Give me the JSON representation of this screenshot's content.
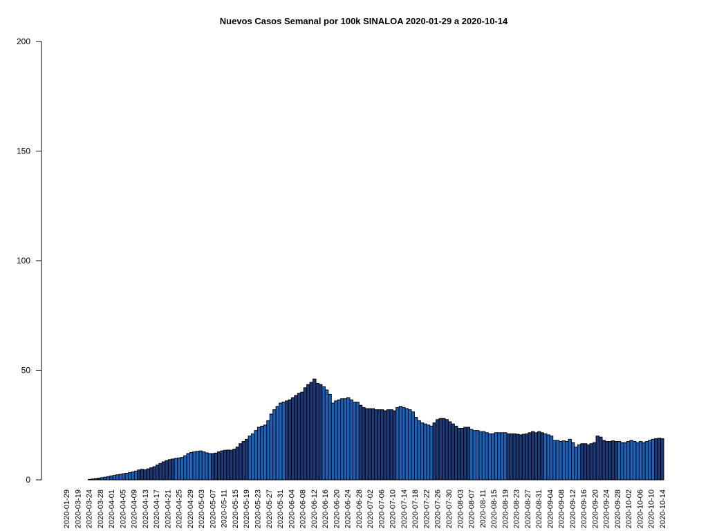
{
  "chart_data": {
    "type": "bar",
    "title": "Nuevos Casos Semanal por 100k SINALOA 2020-01-29 a 2020-10-14",
    "xlabel": "",
    "ylabel": "",
    "ylim": [
      0,
      200
    ],
    "yticks": [
      0,
      50,
      100,
      150,
      200
    ],
    "grid": false,
    "legend": "none",
    "colors": [
      "#1a3a7a",
      "#1565c0"
    ],
    "border_color": "#000000",
    "x_tick_labels": [
      "2020-01-29",
      "2020-03-19",
      "2020-03-24",
      "2020-03-28",
      "2020-04-01",
      "2020-04-05",
      "2020-04-09",
      "2020-04-13",
      "2020-04-17",
      "2020-04-21",
      "2020-04-25",
      "2020-04-29",
      "2020-05-03",
      "2020-05-07",
      "2020-05-11",
      "2020-05-15",
      "2020-05-19",
      "2020-05-23",
      "2020-05-27",
      "2020-05-31",
      "2020-06-04",
      "2020-06-08",
      "2020-06-12",
      "2020-06-16",
      "2020-06-20",
      "2020-06-24",
      "2020-06-28",
      "2020-07-02",
      "2020-07-06",
      "2020-07-10",
      "2020-07-14",
      "2020-07-18",
      "2020-07-22",
      "2020-07-26",
      "2020-07-30",
      "2020-08-03",
      "2020-08-07",
      "2020-08-11",
      "2020-08-15",
      "2020-08-19",
      "2020-08-23",
      "2020-08-27",
      "2020-08-31",
      "2020-09-04",
      "2020-09-08",
      "2020-09-12",
      "2020-09-16",
      "2020-09-20",
      "2020-09-24",
      "2020-09-28",
      "2020-10-02",
      "2020-10-06",
      "2020-10-10",
      "2020-10-14"
    ],
    "values": [
      0,
      0,
      0,
      0,
      0,
      0,
      0,
      0,
      0.2,
      0.4,
      0.6,
      0.8,
      1.0,
      1.2,
      1.5,
      1.8,
      2.0,
      2.3,
      2.5,
      2.8,
      3.0,
      3.3,
      3.6,
      4.0,
      4.5,
      4.8,
      4.6,
      5.0,
      5.5,
      6.0,
      6.8,
      7.5,
      8.2,
      8.8,
      9.2,
      9.5,
      9.8,
      10.0,
      10.2,
      11.0,
      12.0,
      12.5,
      12.8,
      13.0,
      13.2,
      12.8,
      12.3,
      12.0,
      12.0,
      12.2,
      12.8,
      13.2,
      13.5,
      13.6,
      13.5,
      14.0,
      15.0,
      16.5,
      17.5,
      18.5,
      20.0,
      21.0,
      22.5,
      24.0,
      24.5,
      25.0,
      27.0,
      30.0,
      32.0,
      33.5,
      35.0,
      35.5,
      36.0,
      36.5,
      37.5,
      38.5,
      39.5,
      40.0,
      42.0,
      43.5,
      44.5,
      46.0,
      44.0,
      43.5,
      42.5,
      41.0,
      39.0,
      35.0,
      36.0,
      36.5,
      37.0,
      37.0,
      37.5,
      36.5,
      35.5,
      35.5,
      34.0,
      33.0,
      32.5,
      32.5,
      32.5,
      32.0,
      32.0,
      32.0,
      31.5,
      32.0,
      32.0,
      31.5,
      33.0,
      33.5,
      33.0,
      32.5,
      32.0,
      31.0,
      28.5,
      27.0,
      26.0,
      25.5,
      25.0,
      24.5,
      26.0,
      27.5,
      28.0,
      28.0,
      27.5,
      26.5,
      25.5,
      24.5,
      23.5,
      23.5,
      24.0,
      24.0,
      23.0,
      22.5,
      22.5,
      22.0,
      22.0,
      21.5,
      21.0,
      21.0,
      21.5,
      21.5,
      21.5,
      21.5,
      21.0,
      21.0,
      21.0,
      20.8,
      20.5,
      20.8,
      21.0,
      21.5,
      22.0,
      21.5,
      22.0,
      21.5,
      21.0,
      20.5,
      20.0,
      18.0,
      18.0,
      17.5,
      17.8,
      17.5,
      18.5,
      17.0,
      15.0,
      16.0,
      16.5,
      16.5,
      16.0,
      16.5,
      17.0,
      20.0,
      19.5,
      18.0,
      17.5,
      17.5,
      17.8,
      17.5,
      17.5,
      17.0,
      17.0,
      17.5,
      18.0,
      17.5,
      17.0,
      17.5,
      17.0,
      17.5,
      18.0,
      18.5,
      18.8,
      19.0,
      18.8
    ]
  }
}
